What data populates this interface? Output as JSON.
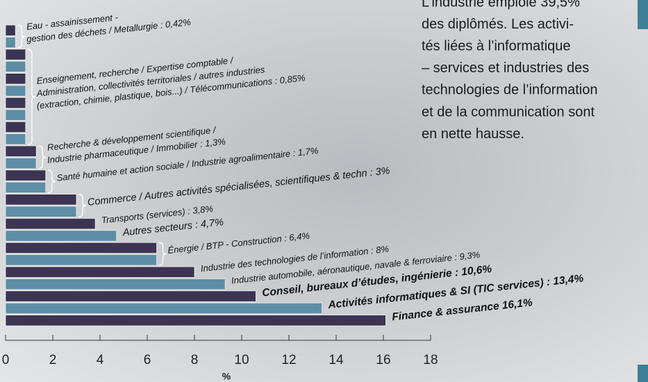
{
  "chart_data": {
    "type": "bar",
    "groups": [
      {
        "label": [
          "Eau - assainissement -",
          "gestion des déchets / Metallurgie : 0,42%"
        ],
        "values": [
          0.42,
          0.42
        ]
      },
      {
        "label": [
          "Enseignement, recherche / Expertise comptable /",
          "Administration, collectivités territoriales / autres industries",
          "(extraction, chimie, plastique, bois...) / Télécommunications : 0,85%"
        ],
        "values": [
          0.85,
          0.85,
          0.85,
          0.85,
          0.85,
          0.85,
          0.85,
          0.85
        ]
      },
      {
        "label": [
          "Recherche & développement scientifique  /",
          "Industrie pharmaceutique / Immobilier : 1,3%"
        ],
        "values": [
          1.3,
          1.3
        ]
      },
      {
        "label": [
          "Santé humaine et action sociale / Industrie agroalimentaire : 1,7%"
        ],
        "values": [
          1.7,
          1.7
        ]
      },
      {
        "label": [
          "Commerce / Autres activités spécialisées, scientifiques & techn : 3%"
        ],
        "values": [
          3,
          3
        ]
      },
      {
        "label": [
          "Transports (services) : 3,8%"
        ],
        "values": [
          3.8
        ]
      },
      {
        "label": [
          "Autres secteurs : 4,7%"
        ],
        "values": [
          4.7
        ]
      },
      {
        "label": [
          "Énergie / BTP - Construction : 6,4%"
        ],
        "values": [
          6.4,
          6.4
        ]
      },
      {
        "label": [
          "Industrie des technologies de l’information : 8%"
        ],
        "values": [
          8
        ]
      },
      {
        "label": [
          "Industrie automobile, aéronautique, navale & ferroviaire : 9,3%"
        ],
        "values": [
          9.3
        ]
      },
      {
        "label": [
          "Conseil, bureaux d’études, ingénierie : 10,6%"
        ],
        "values": [
          10.6
        ]
      },
      {
        "label": [
          "Activités informatiques & SI (TIC services) : 13,4%"
        ],
        "values": [
          13.4
        ]
      },
      {
        "label": [
          "Finance & assurance 16,1%"
        ],
        "values": [
          16.1
        ]
      }
    ],
    "colors": [
      "#3c3452",
      "#5b8ea5"
    ],
    "xlabel": "%",
    "xlim": [
      0,
      18
    ],
    "xticks": [
      0,
      2,
      4,
      6,
      8,
      10,
      12,
      14,
      16,
      18
    ]
  },
  "text": [
    "L’industrie emploie 39,5%",
    "des diplômés. Les activi-",
    "tés liées à l’informatique",
    "– services et industries des",
    "technologies de l’information",
    "et de la communication sont",
    "en nette hausse."
  ]
}
